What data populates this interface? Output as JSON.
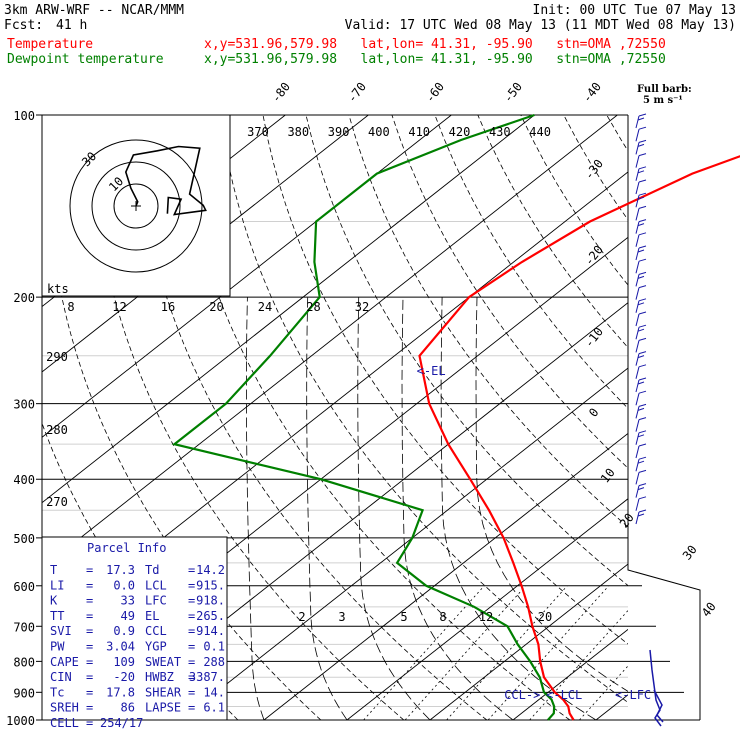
{
  "header": {
    "model": "3km ARW-WRF -- NCAR/MMM",
    "init": "Init: 00 UTC Tue 07 May 13",
    "fcst_label": "Fcst:",
    "fcst_value": "41 h",
    "valid": "Valid: 17 UTC Wed 08 May 13 (11 MDT Wed 08 May 13)"
  },
  "legend": [
    {
      "name": "Temperature",
      "info": "x,y=531.96,579.98   lat,lon= 41.31, -95.90   stn=OMA ,72550",
      "color": "#ff0000"
    },
    {
      "name": "Dewpoint temperature",
      "info": "x,y=531.96,579.98   lat,lon= 41.31, -95.90   stn=OMA ,72550",
      "color": "#008000"
    }
  ],
  "wind_label": "Full barb:",
  "wind_unit": "5 m s⁻¹",
  "chart_data": {
    "type": "skew-t",
    "yaxis": "pressure (hPa), log scale",
    "pressure_ticks": [
      "100",
      "200",
      "300",
      "400",
      "500",
      "600",
      "700",
      "800",
      "900",
      "1000"
    ],
    "isotherm_labels": [
      "-80",
      "-70",
      "-60",
      "-50",
      "-40",
      "-30",
      "-20",
      "-10",
      "0",
      "10",
      "20",
      "30",
      "40"
    ],
    "theta_e_labels": [
      "370",
      "380",
      "390",
      "400",
      "410",
      "420",
      "430",
      "440"
    ],
    "hodograph_speed_ticks": [
      "8",
      "12",
      "16",
      "20",
      "24",
      "28",
      "32"
    ],
    "hodograph_ring_labels": [
      "30",
      "10"
    ],
    "hodograph_unit": "kts",
    "mixing_ratio_labels": [
      "2",
      "3",
      "5",
      "8",
      "12",
      "20"
    ],
    "dry_adiabat_labels": [
      "290",
      "280",
      "270"
    ],
    "temperature": {
      "name": "Temperature",
      "p": [
        1000,
        975,
        950,
        925,
        900,
        850,
        800,
        750,
        700,
        650,
        600,
        550,
        500,
        450,
        400,
        350,
        300,
        250,
        200,
        175,
        150,
        125,
        110,
        100
      ],
      "t": [
        17.3,
        15.8,
        14.6,
        12.9,
        10.8,
        7.2,
        4.3,
        1.5,
        -2.0,
        -5.5,
        -9.5,
        -14.0,
        -19.0,
        -25.0,
        -32.0,
        -40.0,
        -48.5,
        -57.0,
        -60.0,
        -59.0,
        -57.0,
        -52.0,
        -46.0,
        -41.0
      ]
    },
    "dewpoint": {
      "name": "Dewpoint temperature",
      "p": [
        1000,
        975,
        950,
        925,
        900,
        850,
        800,
        750,
        700,
        650,
        600,
        550,
        500,
        450,
        400,
        350,
        300,
        250,
        200,
        175,
        150,
        125,
        110,
        100
      ],
      "td": [
        14.2,
        13.9,
        12.9,
        11.5,
        9.5,
        6.7,
        3.1,
        -1.0,
        -5.0,
        -12.0,
        -21.0,
        -28.0,
        -30.0,
        -33.0,
        -50.0,
        -73.0,
        -73.0,
        -75.0,
        -78.0,
        -84.0,
        -90.0,
        -90.0,
        -85.0,
        -80.0
      ]
    },
    "hodograph_trace": [
      [
        0,
        0
      ],
      [
        0.2,
        0.5
      ],
      [
        -0.6,
        2.1
      ],
      [
        -1.2,
        4.0
      ],
      [
        -0.3,
        6.0
      ],
      [
        2.5,
        6.5
      ],
      [
        5.0,
        7.0
      ],
      [
        7.5,
        6.8
      ],
      [
        6.3,
        1.4
      ],
      [
        7.9,
        0.1
      ],
      [
        8.2,
        -0.5
      ],
      [
        4.5,
        -1.0
      ],
      [
        5.3,
        0.8
      ],
      [
        3.8,
        1.0
      ],
      [
        3.7,
        -0.9
      ]
    ],
    "parcel_markers": [
      {
        "label": "<-EL",
        "p": 265,
        "t": -55
      },
      {
        "label": "CCL->",
        "p": 910,
        "t": 9.5
      },
      {
        "label": "<-LCL",
        "p": 910,
        "t": 10.2
      },
      {
        "label": "<-LFC",
        "p": 910,
        "t": 18.5
      }
    ]
  },
  "parcel_info": {
    "title": "Parcel Info",
    "rows": [
      {
        "l1": "T",
        "v1": "17.3",
        "l2": "Td",
        "v2": "14.2"
      },
      {
        "l1": "LI",
        "v1": "0.0",
        "l2": "LCL",
        "v2": "915."
      },
      {
        "l1": "K",
        "v1": "33",
        "l2": "LFC",
        "v2": "918."
      },
      {
        "l1": "TT",
        "v1": "49",
        "l2": "EL",
        "v2": "265."
      },
      {
        "l1": "SVI",
        "v1": "0.9",
        "l2": "CCL",
        "v2": "914."
      },
      {
        "l1": "PW",
        "v1": "3.04",
        "l2": "YGP",
        "v2": "0.1"
      },
      {
        "l1": "CAPE",
        "v1": "109",
        "l2": "SWEAT",
        "v2": "288"
      },
      {
        "l1": "CIN",
        "v1": "-20",
        "l2": "HWBZ",
        "v2": "3387."
      },
      {
        "l1": "Tc",
        "v1": "17.8",
        "l2": "SHEAR",
        "v2": "14."
      },
      {
        "l1": "SREH",
        "v1": "86",
        "l2": "LAPSE",
        "v2": "6.1"
      },
      {
        "l1": "CELL",
        "v1": "254/17",
        "l2": "",
        "v2": ""
      }
    ]
  },
  "colors": {
    "temperature": "#ff0000",
    "dewpoint": "#008000",
    "grid": "#000000",
    "barbs": "#1a1aa8",
    "parcel": "#1a1aa8"
  }
}
